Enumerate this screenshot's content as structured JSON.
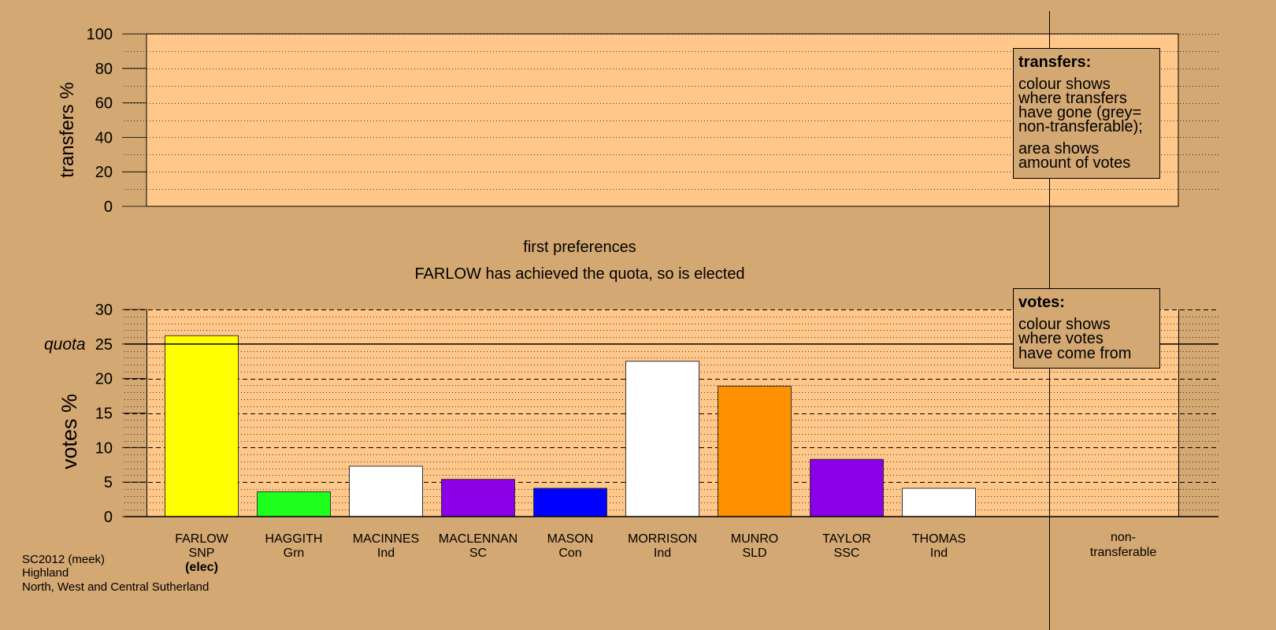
{
  "colors": {
    "background": "#d4a872",
    "panel": "#ffc88a",
    "shade": "#d4a872"
  },
  "transfers_chart": {
    "ylabel": "transfers %",
    "yticks": [
      "0",
      "20",
      "40",
      "60",
      "80",
      "100"
    ],
    "legend": {
      "title": "transfers:",
      "lines": [
        "colour shows",
        "where transfers",
        "have gone (grey=",
        "non-transferable);",
        "area shows",
        "amount of votes"
      ]
    }
  },
  "stage": {
    "title": "first preferences",
    "message": "FARLOW has achieved the quota, so is elected"
  },
  "votes_legend": {
    "title": "votes:",
    "lines": [
      "colour shows",
      "where votes",
      "have come from"
    ]
  },
  "non_transferable_label": [
    "non-",
    "transferable"
  ],
  "footer": [
    "SC2012 (meek)",
    "Highland",
    "North, West and Central Sutherland"
  ],
  "chart_data": [
    {
      "type": "bar",
      "title": "",
      "ylabel": "transfers %",
      "ylim": [
        0,
        100
      ],
      "values": []
    },
    {
      "type": "bar",
      "title": "first preferences",
      "ylabel": "votes %",
      "ylim": [
        0,
        30
      ],
      "quota": 25,
      "quota_label": "quota",
      "yticks": [
        "0",
        "5",
        "10",
        "15",
        "20",
        "25",
        "30"
      ],
      "categories": [
        "FARLOW",
        "HAGGITH",
        "MACINNES",
        "MACLENNAN",
        "MASON",
        "MORRISON",
        "MUNRO",
        "TAYLOR",
        "THOMAS"
      ],
      "parties": [
        "SNP",
        "Grn",
        "Ind",
        "SC",
        "Con",
        "Ind",
        "SLD",
        "SSC",
        "Ind"
      ],
      "status": [
        "(elec)",
        "",
        "",
        "",
        "",
        "",
        "",
        "",
        ""
      ],
      "values": [
        26.2,
        3.6,
        7.3,
        5.4,
        4.1,
        22.5,
        18.9,
        8.3,
        4.1
      ],
      "bar_colors": [
        "#ffff00",
        "#1eff1e",
        "#ffffff",
        "#8b00e6",
        "#0000ff",
        "#ffffff",
        "#ff9000",
        "#8b00e6",
        "#ffffff"
      ]
    }
  ]
}
